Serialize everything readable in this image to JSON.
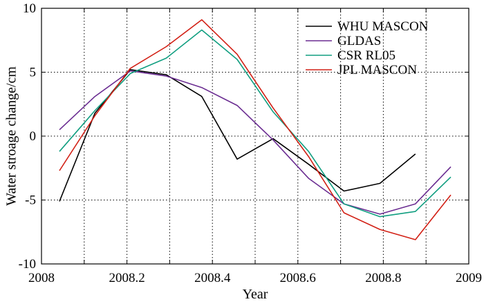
{
  "chart_data": {
    "type": "line",
    "title": "",
    "xlabel": "Year",
    "ylabel": "Water stroage change/cm",
    "xlim": [
      2008,
      2009
    ],
    "ylim": [
      -10,
      10
    ],
    "xticks": [
      2008,
      2008.2,
      2008.4,
      2008.6,
      2008.8,
      2009
    ],
    "xtick_labels": [
      "2008",
      "2008.2",
      "2008.4",
      "2008.6",
      "2008.8",
      "2009"
    ],
    "yticks": [
      -10,
      -5,
      0,
      5,
      10
    ],
    "ytick_labels": [
      "-10",
      "-5",
      "0",
      "5",
      "10"
    ],
    "grid": true,
    "legend_position": "top-right",
    "series": [
      {
        "name": "WHU MASCON",
        "color": "#000000",
        "x": [
          2008.042,
          2008.125,
          2008.208,
          2008.292,
          2008.375,
          2008.458,
          2008.542,
          2008.625,
          2008.708,
          2008.792,
          2008.875
        ],
        "y": [
          -5.1,
          1.8,
          5.2,
          4.8,
          3.1,
          -1.8,
          -0.2,
          -2.2,
          -4.3,
          -3.7,
          -1.4
        ]
      },
      {
        "name": "GLDAS",
        "color": "#6a2c91",
        "x": [
          2008.042,
          2008.125,
          2008.208,
          2008.292,
          2008.375,
          2008.458,
          2008.542,
          2008.625,
          2008.708,
          2008.792,
          2008.875,
          2008.958
        ],
        "y": [
          0.5,
          3.1,
          5.1,
          4.7,
          3.8,
          2.4,
          -0.3,
          -3.3,
          -5.3,
          -6.1,
          -5.3,
          -2.4
        ]
      },
      {
        "name": "CSR RL05",
        "color": "#109e80",
        "x": [
          2008.042,
          2008.125,
          2008.208,
          2008.292,
          2008.375,
          2008.458,
          2008.542,
          2008.625,
          2008.708,
          2008.792,
          2008.875,
          2008.958
        ],
        "y": [
          -1.2,
          2.0,
          4.9,
          6.1,
          8.3,
          6.0,
          1.9,
          -1.2,
          -5.3,
          -6.3,
          -5.9,
          -3.2
        ]
      },
      {
        "name": "JPL MASCON",
        "color": "#d21f14",
        "x": [
          2008.042,
          2008.125,
          2008.208,
          2008.292,
          2008.375,
          2008.458,
          2008.542,
          2008.625,
          2008.708,
          2008.792,
          2008.875,
          2008.958
        ],
        "y": [
          -2.7,
          1.6,
          5.3,
          7.0,
          9.1,
          6.4,
          2.2,
          -1.6,
          -6.0,
          -7.3,
          -8.1,
          -4.6
        ]
      }
    ]
  }
}
